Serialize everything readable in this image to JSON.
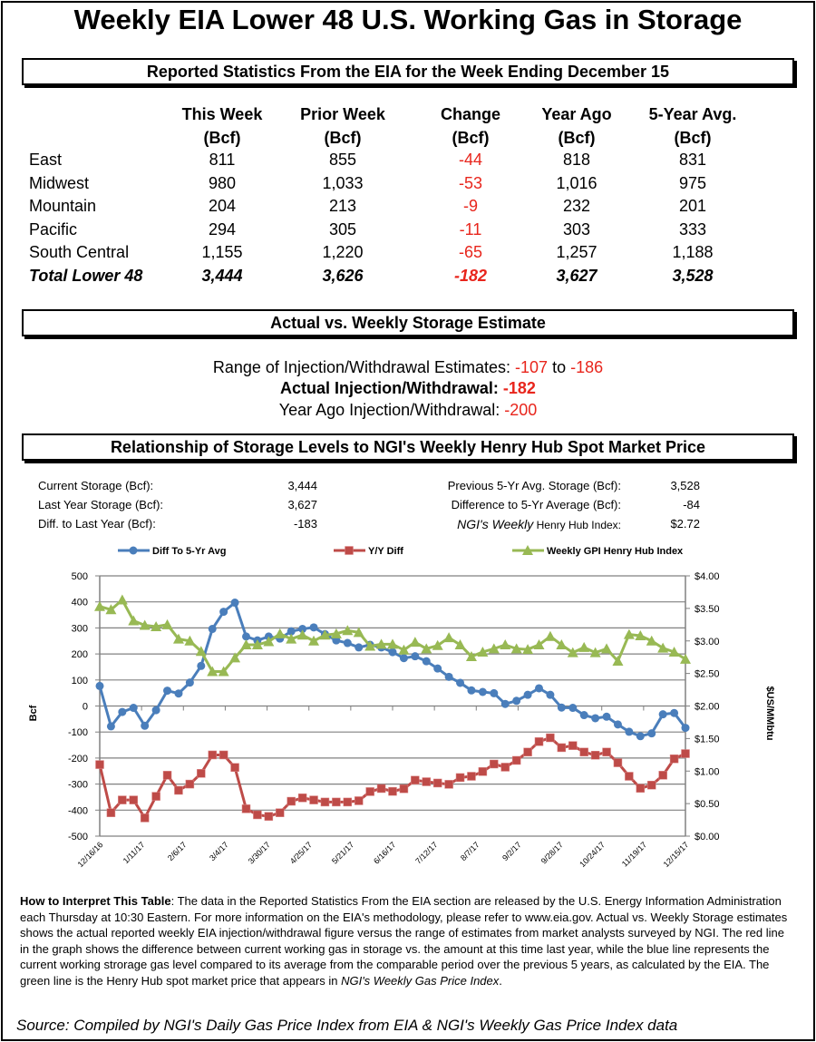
{
  "title": "Weekly EIA Lower 48 U.S. Working Gas in Storage",
  "section1": {
    "header": "Reported Statistics From the EIA for the Week Ending December 15",
    "columns": [
      [
        "This Week",
        "(Bcf)"
      ],
      [
        "Prior Week",
        "(Bcf)"
      ],
      [
        "Change",
        "(Bcf)"
      ],
      [
        "Year Ago",
        "(Bcf)"
      ],
      [
        "5-Year Avg.",
        "(Bcf)"
      ]
    ],
    "rows": [
      {
        "region": "East",
        "values": [
          "811",
          "855",
          "-44",
          "818",
          "831"
        ]
      },
      {
        "region": "Midwest",
        "values": [
          "980",
          "1,033",
          "-53",
          "1,016",
          "975"
        ]
      },
      {
        "region": "Mountain",
        "values": [
          "204",
          "213",
          "-9",
          "232",
          "201"
        ]
      },
      {
        "region": "Pacific",
        "values": [
          "294",
          "305",
          "-11",
          "303",
          "333"
        ]
      },
      {
        "region": "South Central",
        "values": [
          "1,155",
          "1,220",
          "-65",
          "1,257",
          "1,188"
        ]
      },
      {
        "region": "Total Lower 48",
        "values": [
          "3,444",
          "3,626",
          "-182",
          "3,627",
          "3,528"
        ]
      }
    ]
  },
  "section2": {
    "header": "Actual vs. Weekly Storage Estimate",
    "range_label": "Range of Injection/Withdrawal Estimates: ",
    "range_low": "-107",
    "range_to": " to ",
    "range_high": "-186",
    "actual_label": "Actual Injection/Withdrawal: ",
    "actual_value": "-182",
    "yearago_label": "Year Ago Injection/Withdrawal: ",
    "yearago_value": "-200"
  },
  "section3": {
    "header": "Relationship of Storage Levels to NGI's Weekly Henry Hub Spot Market Price",
    "stats_left": [
      {
        "label": "Current Storage (Bcf):",
        "value": "3,444"
      },
      {
        "label": "Last Year Storage (Bcf):",
        "value": "3,627"
      },
      {
        "label": "Diff. to Last Year (Bcf):",
        "value": "-183"
      }
    ],
    "stats_right": [
      {
        "label": "Previous 5-Yr Avg. Storage (Bcf):",
        "value": "3,528"
      },
      {
        "label": "Difference to 5-Yr Average (Bcf):",
        "value": "-84"
      },
      {
        "label_italic": "NGI's Weekly",
        "label": " Henry Hub Index:",
        "value": "$2.72"
      }
    ]
  },
  "colors": {
    "blue": "#4a7ebb",
    "red": "#be4b48",
    "green": "#98b954",
    "highlight": "#e8251c"
  },
  "chart_data": {
    "type": "line",
    "legend_position": "top",
    "grid": true,
    "ylabel": "Bcf",
    "y2label": "$US/MMbtu",
    "ylim": [
      -500,
      500
    ],
    "y2lim": [
      0,
      4
    ],
    "yticks": [
      "500",
      "400",
      "300",
      "200",
      "100",
      "0",
      "-100",
      "-200",
      "-300",
      "-400",
      "-500"
    ],
    "y2ticks": [
      "$4.00",
      "$3.50",
      "$3.00",
      "$2.50",
      "$2.00",
      "$1.50",
      "$1.00",
      "$0.50",
      "$0.00"
    ],
    "xticks": [
      "12/16/16",
      "1/11/17",
      "2/6/17",
      "3/4/17",
      "3/30/17",
      "4/25/17",
      "5/21/17",
      "6/16/17",
      "7/12/17",
      "8/7/17",
      "9/2/17",
      "9/28/17",
      "10/24/17",
      "11/19/17",
      "12/15/17"
    ],
    "x_range": [
      "12/16/16",
      "12/15/17"
    ],
    "x_interval": "weekly",
    "series": [
      {
        "name": "Diff To 5-Yr Avg",
        "axis": "left",
        "marker": "circle",
        "values": [
          77,
          -78,
          -23,
          -7,
          -76,
          -16,
          59,
          48,
          90,
          154,
          296,
          362,
          397,
          267,
          252,
          267,
          259,
          287,
          296,
          302,
          276,
          252,
          242,
          225,
          235,
          225,
          207,
          184,
          191,
          172,
          144,
          112,
          89,
          60,
          54,
          49,
          8,
          20,
          43,
          68,
          43,
          -6,
          -7,
          -35,
          -47,
          -41,
          -71,
          -99,
          -116,
          -105,
          -32,
          -27,
          -84
        ]
      },
      {
        "name": "Y/Y Diff",
        "axis": "left",
        "marker": "square",
        "values": [
          -225,
          -410,
          -361,
          -361,
          -430,
          -347,
          -266,
          -324,
          -300,
          -259,
          -188,
          -188,
          -236,
          -395,
          -418,
          -424,
          -410,
          -366,
          -353,
          -361,
          -369,
          -369,
          -369,
          -364,
          -329,
          -317,
          -328,
          -318,
          -285,
          -291,
          -296,
          -301,
          -275,
          -270,
          -252,
          -223,
          -235,
          -209,
          -177,
          -137,
          -122,
          -160,
          -152,
          -177,
          -189,
          -177,
          -218,
          -270,
          -316,
          -304,
          -266,
          -203,
          -183
        ]
      },
      {
        "name": "Weekly GPI Henry Hub Index",
        "axis": "right",
        "marker": "triangle",
        "values": [
          3.53,
          3.48,
          3.63,
          3.31,
          3.24,
          3.22,
          3.25,
          3.03,
          3.0,
          2.84,
          2.53,
          2.53,
          2.74,
          2.94,
          2.94,
          2.99,
          3.11,
          3.03,
          3.09,
          3.0,
          3.09,
          3.11,
          3.16,
          3.13,
          2.92,
          2.95,
          2.95,
          2.86,
          2.98,
          2.88,
          2.93,
          3.05,
          2.94,
          2.76,
          2.83,
          2.88,
          2.94,
          2.88,
          2.87,
          2.94,
          3.07,
          2.94,
          2.82,
          2.9,
          2.82,
          2.88,
          2.69,
          3.1,
          3.08,
          3.0,
          2.89,
          2.83,
          2.72
        ]
      }
    ]
  },
  "description": {
    "bold": "How to Interpret This Table",
    "text": ": The data in the Reported Statistics From the EIA section are released by the U.S. Energy Information Administration each Thursday at 10:30 Eastern. For more information on the EIA's methodology, please refer to www.eia.gov. Actual vs. Weekly Storage estimates shows the actual reported weekly EIA injection/withdrawal figure versus the range of estimates from market analysts surveyed by NGI. The red line in the graph shows the difference between current working gas in storage vs. the amount at this time last year, while the blue line represents the current working strorage gas level  compared to its average from the comparable period over the previous 5 years, as calculated by the EIA. The green line is the Henry Hub spot market price that appears in ",
    "italic": "NGI's Weekly Gas Price Index",
    "end": "."
  },
  "source": "Source: Compiled by NGI's Daily Gas Price Index from EIA & NGI's Weekly Gas Price Index data"
}
